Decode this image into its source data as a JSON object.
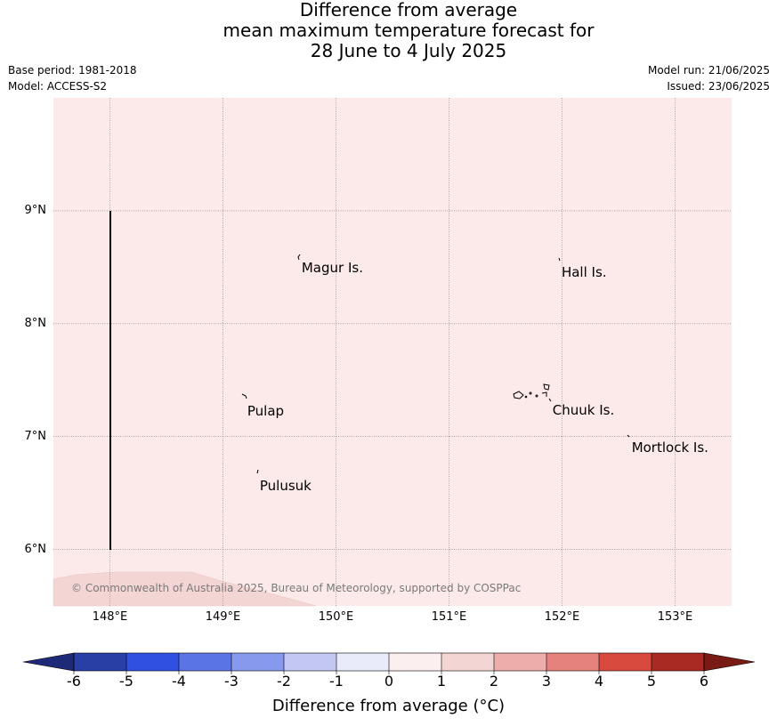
{
  "title": {
    "line1": "Difference from average",
    "line2": "mean maximum temperature forecast for",
    "line3": "28 June to 4 July 2025"
  },
  "meta": {
    "base_period": "Base period: 1981-2018",
    "model": "Model: ACCESS-S2",
    "model_run": "Model run: 21/06/2025",
    "issued": "Issued: 23/06/2025"
  },
  "map": {
    "lon_range": [
      147.5,
      153.5
    ],
    "lat_range": [
      5.5,
      10.0
    ],
    "background_color": "#fbeae9",
    "anomaly_range_shaded": "1 to 2",
    "patch_color": "#f3d6d4",
    "latitude_ticks": [
      {
        "value": 9,
        "label": "9°N"
      },
      {
        "value": 8,
        "label": "8°N"
      },
      {
        "value": 7,
        "label": "7°N"
      },
      {
        "value": 6,
        "label": "6°N"
      }
    ],
    "longitude_ticks": [
      {
        "value": 148,
        "label": "148°E"
      },
      {
        "value": 149,
        "label": "149°E"
      },
      {
        "value": 150,
        "label": "150°E"
      },
      {
        "value": 151,
        "label": "151°E"
      },
      {
        "value": 152,
        "label": "152°E"
      },
      {
        "value": 153,
        "label": "153°E"
      }
    ],
    "boundary_line": {
      "lon": 148,
      "lat_from": 6,
      "lat_to": 9
    },
    "places": [
      {
        "name": "Magur Is.",
        "lon": 149.68,
        "lat": 8.55
      },
      {
        "name": "Hall Is.",
        "lon": 151.98,
        "lat": 8.51
      },
      {
        "name": "Pulap",
        "lon": 149.2,
        "lat": 7.28
      },
      {
        "name": "Chuuk Is.",
        "lon": 151.9,
        "lat": 7.29
      },
      {
        "name": "Mortlock Is.",
        "lon": 152.6,
        "lat": 6.96
      },
      {
        "name": "Pulusuk",
        "lon": 149.31,
        "lat": 6.62
      }
    ],
    "copyright": "© Commonwealth of Australia 2025, Bureau of Meteorology, supported by COSPPac"
  },
  "colorbar": {
    "label": "Difference from average ($^\\circ$C)",
    "label_text": "Difference from average (°C)",
    "ticks": [
      "-6",
      "-5",
      "-4",
      "-3",
      "-2",
      "-1",
      "0",
      "1",
      "2",
      "3",
      "4",
      "5",
      "6"
    ],
    "colors": [
      "#2a3fa6",
      "#3050e2",
      "#5a74e6",
      "#8799ec",
      "#c2c8f2",
      "#e9ebfa",
      "#fcefef",
      "#f3d6d4",
      "#ecaeab",
      "#e6827d",
      "#d84a3e",
      "#a92a22"
    ],
    "under_color": "#1e2a78",
    "over_color": "#7a1a14"
  }
}
